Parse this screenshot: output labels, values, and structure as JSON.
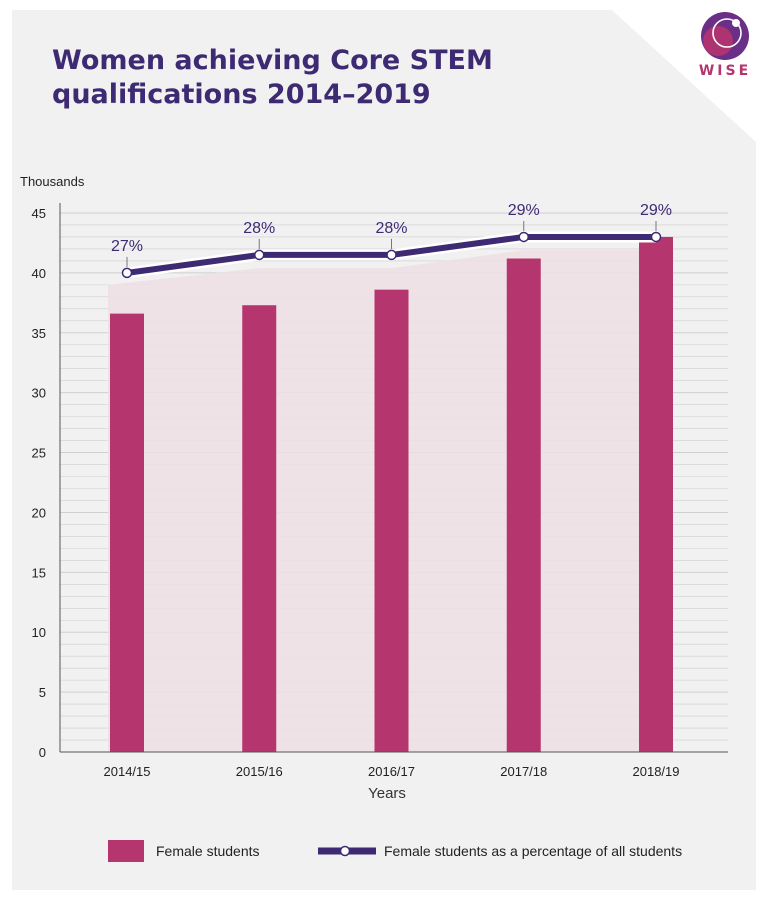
{
  "title_lines": [
    "Women achieving Core STEM",
    "qualifications 2014–2019"
  ],
  "logo": {
    "text": "WISE"
  },
  "colors": {
    "background_panel": "#f1f1f1",
    "bar": "#b5356e",
    "line": "#3d2a73",
    "title": "#3d2a73",
    "area": "#efdfe4",
    "grid": "#cfcfcf"
  },
  "chart_data": {
    "type": "bar",
    "categories": [
      "2014/15",
      "2015/16",
      "2016/17",
      "2017/18",
      "2018/19"
    ],
    "series": [
      {
        "name": "Female students",
        "type": "bar",
        "values": [
          36.6,
          37.3,
          38.6,
          41.2,
          43.0
        ]
      },
      {
        "name": "Female students as a percentage of all students",
        "type": "line",
        "values": [
          27,
          28,
          28,
          29,
          29
        ],
        "labels": [
          "27%",
          "28%",
          "28%",
          "29%",
          "29%"
        ]
      }
    ],
    "ylabel": "Thousands",
    "xlabel": "Years",
    "ylim": [
      0,
      45
    ],
    "yticks": [
      0,
      5,
      10,
      15,
      20,
      25,
      30,
      35,
      40,
      45
    ],
    "grid": true,
    "legend_position": "bottom"
  }
}
